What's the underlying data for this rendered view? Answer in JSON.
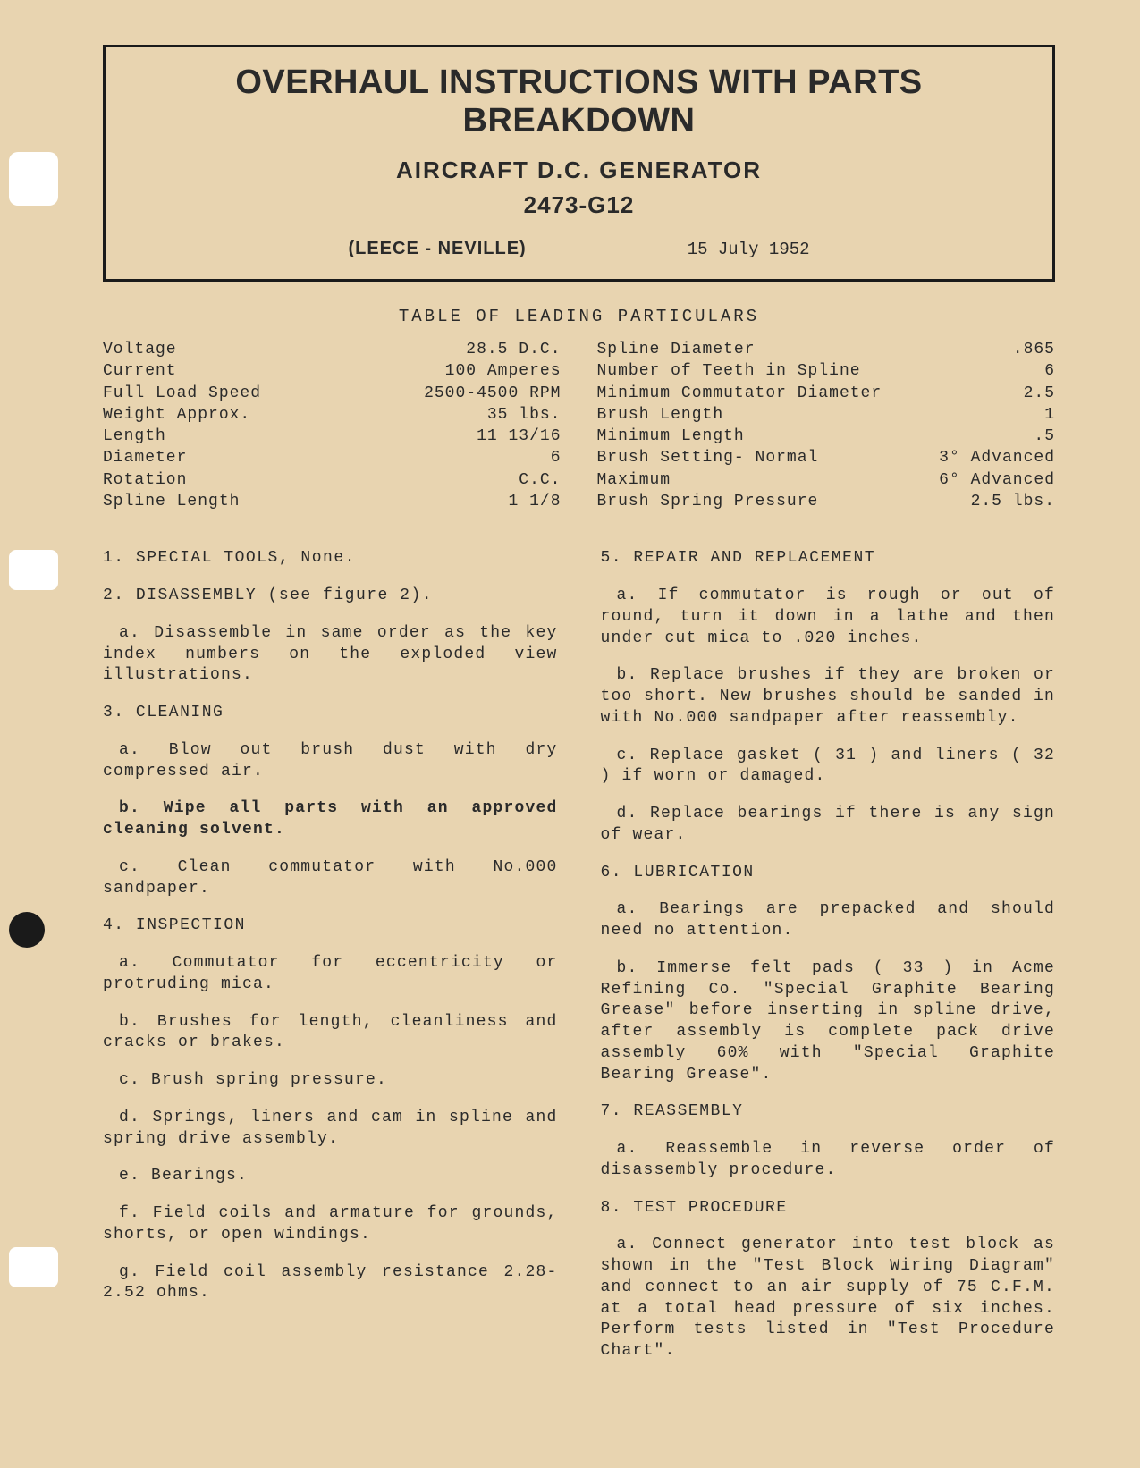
{
  "header": {
    "main_title": "OVERHAUL INSTRUCTIONS WITH PARTS BREAKDOWN",
    "sub_title": "AIRCRAFT D.C. GENERATOR",
    "model": "2473-G12",
    "manufacturer": "(LEECE - NEVILLE)",
    "date": "15 July 1952"
  },
  "table_heading": "TABLE OF LEADING PARTICULARS",
  "specs_left": [
    {
      "label": "Voltage",
      "value": "28.5 D.C."
    },
    {
      "label": "Current",
      "value": "100 Amperes"
    },
    {
      "label": "Full Load Speed",
      "value": "2500-4500 RPM"
    },
    {
      "label": "Weight Approx.",
      "value": "35 lbs."
    },
    {
      "label": "Length",
      "value": "11 13/16"
    },
    {
      "label": "Diameter",
      "value": "6"
    },
    {
      "label": "Rotation",
      "value": "C.C."
    },
    {
      "label": "Spline Length",
      "value": "1 1/8"
    }
  ],
  "specs_right": [
    {
      "label": "Spline Diameter",
      "value": ".865"
    },
    {
      "label": "Number of Teeth in Spline",
      "value": "6"
    },
    {
      "label": "Minimum Commutator Diameter",
      "value": "2.5"
    },
    {
      "label": "Brush Length",
      "value": "1"
    },
    {
      "label": "Minimum Length",
      "value": ".5"
    },
    {
      "label": "Brush Setting- Normal",
      "value": "3° Advanced"
    },
    {
      "label": "Maximum",
      "value": "6° Advanced"
    },
    {
      "label": "Brush Spring Pressure",
      "value": "2.5 lbs."
    }
  ],
  "col_left": {
    "s1": "1. SPECIAL TOOLS, None.",
    "s2": "2. DISASSEMBLY (see figure 2).",
    "s2a": "a. Disassemble in same order as the key index numbers on the exploded view illustrations.",
    "s3": "3. CLEANING",
    "s3a": "a. Blow out brush dust with dry compressed air.",
    "s3b": "b. Wipe all parts with an approved cleaning solvent.",
    "s3c": "c. Clean commutator with No.000 sandpaper.",
    "s4": "4. INSPECTION",
    "s4a": "a. Commutator for eccentricity or protruding mica.",
    "s4b": "b. Brushes for length, cleanliness and cracks or brakes.",
    "s4c": "c. Brush spring pressure.",
    "s4d": "d. Springs, liners and cam in spline and spring drive assembly.",
    "s4e": "e. Bearings.",
    "s4f": "f. Field coils and armature for grounds, shorts, or open windings.",
    "s4g": "g. Field coil assembly resistance 2.28-2.52 ohms."
  },
  "col_right": {
    "s5": "5. REPAIR AND REPLACEMENT",
    "s5a": "a. If commutator is rough or out of round, turn it down in a lathe and then under cut mica to .020 inches.",
    "s5b": "b. Replace brushes if they are broken or too short. New brushes should be sanded in with No.000 sandpaper after reassembly.",
    "s5c": "c. Replace gasket ( 31 ) and liners ( 32 ) if worn or damaged.",
    "s5d": "d. Replace bearings if there is any sign of wear.",
    "s6": "6. LUBRICATION",
    "s6a": "a. Bearings are prepacked and should need no attention.",
    "s6b": "b. Immerse felt pads ( 33 ) in Acme Refining Co. \"Special Graphite Bearing Grease\" before inserting in spline drive, after assembly is complete pack drive assembly 60% with \"Special Graphite Bearing Grease\".",
    "s7": "7. REASSEMBLY",
    "s7a": "a. Reassemble in reverse order of disassembly procedure.",
    "s8": "8. TEST PROCEDURE",
    "s8a": "a. Connect generator into test block as shown in the \"Test Block Wiring Diagram\" and connect to an air supply of 75 C.F.M. at a total head pressure of six inches. Perform tests listed in \"Test Procedure Chart\"."
  },
  "colors": {
    "background": "#e8d4b0",
    "text": "#2a2a2a",
    "border": "#1a1a1a"
  }
}
